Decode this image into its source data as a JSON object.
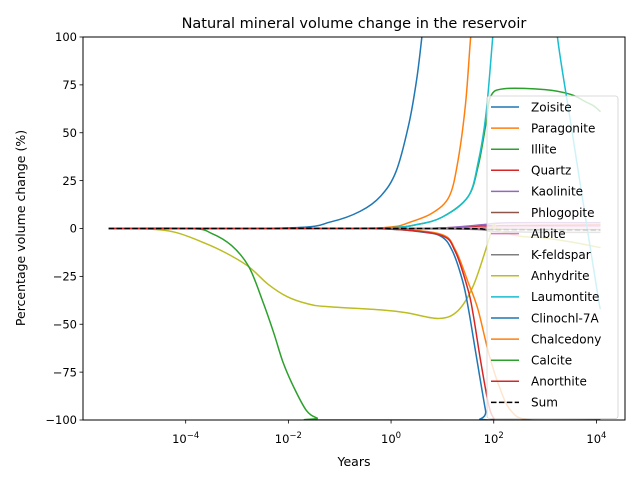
{
  "chart_data": {
    "type": "line",
    "title": "Natural mineral volume change in the reservoir",
    "xlabel": "Years",
    "ylabel": "Percentage volume change (%)",
    "xscale": "log",
    "xlim": [
      1e-06,
      36000
    ],
    "ylim": [
      -100,
      100
    ],
    "xticks": [
      0.0001,
      0.01,
      1,
      100,
      10000
    ],
    "xtick_labels": [
      "10^-4",
      "10^-2",
      "10^0",
      "10^2",
      "10^4"
    ],
    "yticks": [
      -100,
      -75,
      -50,
      -25,
      0,
      25,
      50,
      75,
      100
    ],
    "ytick_labels": [
      "−100",
      "−75",
      "−50",
      "−25",
      "0",
      "25",
      "50",
      "75",
      "100"
    ],
    "grid": false,
    "legend_position": "right",
    "series": [
      {
        "name": "Zoisite",
        "color": "#1f77b4",
        "dashed": false,
        "points": [
          [
            3.16e-06,
            0
          ],
          [
            0.01,
            0.3
          ],
          [
            0.0676,
            3.5
          ],
          [
            0.251,
            9
          ],
          [
            0.631,
            17
          ],
          [
            1.26,
            30
          ],
          [
            2.24,
            55
          ],
          [
            3.16,
            78
          ],
          [
            3.98,
            100
          ],
          [
            5.01,
            125
          ]
        ]
      },
      {
        "name": "Paragonite",
        "color": "#ff7f0e",
        "dashed": false,
        "points": [
          [
            3.16e-06,
            0
          ],
          [
            0.1,
            0.1
          ],
          [
            1,
            0.8
          ],
          [
            2.45,
            3.5
          ],
          [
            6.3,
            8
          ],
          [
            13.5,
            16.6
          ],
          [
            20,
            35
          ],
          [
            28.2,
            65
          ],
          [
            35.5,
            100
          ],
          [
            44.7,
            130
          ]
        ]
      },
      {
        "name": "Illite",
        "color": "#2ca02c",
        "dashed": false,
        "points": [
          [
            3.16e-06,
            0
          ],
          [
            0.1,
            0.1
          ],
          [
            1,
            0.4
          ],
          [
            3.16,
            2
          ],
          [
            10,
            6
          ],
          [
            31.6,
            16.6
          ],
          [
            50.1,
            33
          ],
          [
            70.8,
            55
          ],
          [
            87,
            69
          ],
          [
            158,
            73
          ],
          [
            1000,
            72.5
          ],
          [
            3162,
            70
          ],
          [
            6310,
            66
          ],
          [
            8913,
            64
          ],
          [
            12000,
            61
          ]
        ]
      },
      {
        "name": "Quartz",
        "color": "#d62728",
        "dashed": false,
        "points": [
          [
            3.16e-06,
            0
          ],
          [
            1,
            0
          ],
          [
            10,
            0.3
          ],
          [
            100,
            1.5
          ],
          [
            12000,
            1.8
          ]
        ]
      },
      {
        "name": "Kaolinite",
        "color": "#9467bd",
        "dashed": false,
        "points": [
          [
            3.16e-06,
            0
          ],
          [
            1,
            0
          ],
          [
            10,
            0.3
          ],
          [
            63,
            2
          ],
          [
            200,
            3
          ],
          [
            12000,
            3
          ]
        ]
      },
      {
        "name": "Phlogopite",
        "color": "#8c564b",
        "dashed": false,
        "points": [
          [
            3.16e-06,
            0
          ],
          [
            10,
            0
          ],
          [
            100,
            -0.4
          ],
          [
            12000,
            -0.5
          ]
        ]
      },
      {
        "name": "Albite",
        "color": "#e377c2",
        "dashed": false,
        "points": [
          [
            3.16e-06,
            0
          ],
          [
            10,
            0
          ],
          [
            100,
            0.8
          ],
          [
            12000,
            1
          ]
        ]
      },
      {
        "name": "K-feldspar",
        "color": "#7f7f7f",
        "dashed": false,
        "points": [
          [
            3.16e-06,
            0
          ],
          [
            10,
            -0.2
          ],
          [
            100,
            -1.5
          ],
          [
            1000,
            -2
          ],
          [
            12000,
            -2
          ]
        ]
      },
      {
        "name": "Anhydrite",
        "color": "#bcbd22",
        "dashed": false,
        "points": [
          [
            3.16e-06,
            0
          ],
          [
            1.9e-05,
            -0.3
          ],
          [
            6.3e-05,
            -2
          ],
          [
            0.000234,
            -7.6
          ],
          [
            0.00063,
            -13
          ],
          [
            0.0017,
            -20
          ],
          [
            0.00398,
            -29
          ],
          [
            0.0095,
            -35.6
          ],
          [
            0.0251,
            -39.5
          ],
          [
            0.0575,
            -40.8
          ],
          [
            0.631,
            -42.5
          ],
          [
            2.0,
            -44
          ],
          [
            8.5,
            -47
          ],
          [
            20,
            -43
          ],
          [
            39.8,
            -30
          ],
          [
            75.9,
            -8
          ],
          [
            100,
            2
          ],
          [
            126,
            -1
          ],
          [
            316,
            -4
          ],
          [
            1000,
            -5
          ],
          [
            3162,
            -7
          ],
          [
            12000,
            -10
          ]
        ]
      },
      {
        "name": "Laumontite",
        "color": "#17becf",
        "dashed": false,
        "points": [
          [
            3.16e-06,
            0
          ],
          [
            0.1,
            0.1
          ],
          [
            1,
            0.4
          ],
          [
            3.16,
            2
          ],
          [
            10,
            6
          ],
          [
            31.6,
            16.6
          ],
          [
            50.1,
            35
          ],
          [
            70.8,
            60
          ],
          [
            95.5,
            100
          ],
          [
            126,
            140
          ],
          [
            1259,
            140
          ],
          [
            1738,
            100
          ],
          [
            3162,
            55
          ],
          [
            6607,
            0
          ],
          [
            10965,
            -37
          ],
          [
            12000,
            -42
          ]
        ]
      },
      {
        "name": "Clinochl-7A",
        "color": "#1f77b4",
        "dashed": false,
        "points": [
          [
            3.16e-06,
            0
          ],
          [
            0.1,
            0
          ],
          [
            1,
            -0.4
          ],
          [
            3.16,
            -1.5
          ],
          [
            9.3,
            -4
          ],
          [
            15.8,
            -12
          ],
          [
            25.1,
            -28
          ],
          [
            32.4,
            -42.5
          ],
          [
            44.7,
            -65
          ],
          [
            69.2,
            -95
          ],
          [
            79.4,
            -100
          ],
          [
            12000,
            -100
          ]
        ]
      },
      {
        "name": "Chalcedony",
        "color": "#ff7f0e",
        "dashed": false,
        "points": [
          [
            3.16e-06,
            0
          ],
          [
            0.1,
            0
          ],
          [
            1,
            -0.3
          ],
          [
            9.3,
            -3
          ],
          [
            17.8,
            -11
          ],
          [
            31.6,
            -28
          ],
          [
            49,
            -42
          ],
          [
            79.4,
            -65
          ],
          [
            126,
            -82
          ],
          [
            214,
            -95
          ],
          [
            525,
            -100
          ],
          [
            12000,
            -100
          ]
        ]
      },
      {
        "name": "Calcite",
        "color": "#2ca02c",
        "dashed": false,
        "points": [
          [
            3.16e-06,
            0
          ],
          [
            0.000126,
            0
          ],
          [
            0.000316,
            -2.5
          ],
          [
            0.00079,
            -9
          ],
          [
            0.0017,
            -20
          ],
          [
            0.00316,
            -38
          ],
          [
            0.0052,
            -54.6
          ],
          [
            0.0079,
            -70
          ],
          [
            0.0126,
            -82.6
          ],
          [
            0.0224,
            -95
          ],
          [
            0.0363,
            -99
          ],
          [
            0.0575,
            -100
          ],
          [
            12000,
            -100
          ]
        ]
      },
      {
        "name": "Anorthite",
        "color": "#d62728",
        "dashed": false,
        "points": [
          [
            3.16e-06,
            0
          ],
          [
            0.1,
            0
          ],
          [
            1,
            -0.3
          ],
          [
            9.3,
            -3.5
          ],
          [
            17.8,
            -12
          ],
          [
            31.6,
            -32
          ],
          [
            39.8,
            -45
          ],
          [
            56.2,
            -70
          ],
          [
            79.4,
            -92
          ],
          [
            100,
            -99
          ],
          [
            126,
            -100
          ],
          [
            12000,
            -100
          ]
        ]
      },
      {
        "name": "Sum",
        "color": "#000000",
        "dashed": true,
        "points": [
          [
            3.16e-06,
            0
          ],
          [
            10,
            0
          ],
          [
            100,
            -0.5
          ],
          [
            12000,
            -0.8
          ]
        ]
      }
    ]
  }
}
